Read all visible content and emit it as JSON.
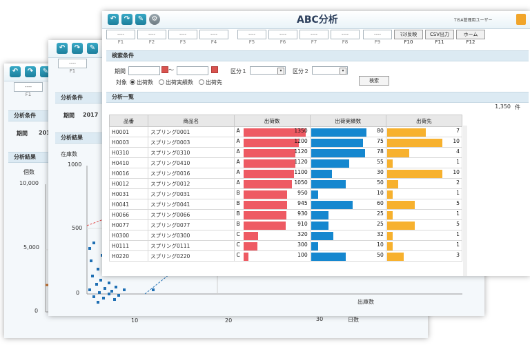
{
  "app": {
    "title": "ABC分析",
    "user": "TISA管理用ユーザー"
  },
  "fkeys_front": [
    {
      "key": "F1",
      "label": "----"
    },
    {
      "key": "F2",
      "label": "----"
    },
    {
      "key": "F3",
      "label": "----"
    },
    {
      "key": "F4",
      "label": "----"
    },
    {
      "key": "F5",
      "label": "----"
    },
    {
      "key": "F6",
      "label": "----"
    },
    {
      "key": "F7",
      "label": "----"
    },
    {
      "key": "F8",
      "label": "----"
    },
    {
      "key": "F9",
      "label": "----"
    },
    {
      "key": "F10",
      "label": "ﾏｽﾀ反映"
    },
    {
      "key": "F11",
      "label": "CSV出力"
    },
    {
      "key": "F12",
      "label": "ホーム"
    }
  ],
  "back_fkey": {
    "key": "F1",
    "label": "----"
  },
  "search": {
    "section": "検索条件",
    "period_label": "期間",
    "tilde": "～",
    "kubun1_label": "区分１",
    "kubun2_label": "区分２",
    "target_label": "対象",
    "radios": [
      "出荷数",
      "出荷実績数",
      "出荷先"
    ],
    "search_button": "検索"
  },
  "list": {
    "section": "分析一覧",
    "headers": [
      "品番",
      "商品名",
      "出荷数",
      "出荷実績数",
      "出荷先"
    ],
    "rows": [
      {
        "code": "H0001",
        "name": "スプリング0001",
        "rank": "A",
        "qty": "1350",
        "actual": "80",
        "dest": "7"
      },
      {
        "code": "H0003",
        "name": "スプリング0003",
        "rank": "A",
        "qty": "1200",
        "actual": "75",
        "dest": "10"
      },
      {
        "code": "H0310",
        "name": "スプリング0310",
        "rank": "A",
        "qty": "1120",
        "actual": "78",
        "dest": "4"
      },
      {
        "code": "H0410",
        "name": "スプリング0410",
        "rank": "A",
        "qty": "1120",
        "actual": "55",
        "dest": "1"
      },
      {
        "code": "H0016",
        "name": "スプリング0016",
        "rank": "A",
        "qty": "1100",
        "actual": "30",
        "dest": "10"
      },
      {
        "code": "H0012",
        "name": "スプリング0012",
        "rank": "A",
        "qty": "1050",
        "actual": "50",
        "dest": "2"
      },
      {
        "code": "H0031",
        "name": "スプリング0031",
        "rank": "B",
        "qty": "950",
        "actual": "10",
        "dest": "1"
      },
      {
        "code": "H0041",
        "name": "スプリング0041",
        "rank": "B",
        "qty": "945",
        "actual": "60",
        "dest": "5"
      },
      {
        "code": "H0066",
        "name": "スプリング0066",
        "rank": "B",
        "qty": "930",
        "actual": "25",
        "dest": "1"
      },
      {
        "code": "H0077",
        "name": "スプリング0077",
        "rank": "B",
        "qty": "910",
        "actual": "25",
        "dest": "5"
      },
      {
        "code": "H0300",
        "name": "スプリング0300",
        "rank": "C",
        "qty": "320",
        "actual": "32",
        "dest": "1"
      },
      {
        "code": "H0111",
        "name": "スプリング0111",
        "rank": "C",
        "qty": "300",
        "actual": "10",
        "dest": "1"
      },
      {
        "code": "H0220",
        "name": "スプリング0220",
        "rank": "C",
        "qty": "100",
        "actual": "50",
        "dest": "3"
      }
    ],
    "bar_max": {
      "qty": 1350,
      "actual": 80,
      "dest": 10
    }
  },
  "behind": {
    "total_value": "1,350",
    "total_unit": "件",
    "cond_section": "分析条件",
    "period_label": "期間",
    "period_value": "2017",
    "result_section": "分析結果",
    "chart_mid_ylabel": "在庫数",
    "chart_mid_xlabel": "出庫数",
    "chart_back_ylabel": "個数",
    "chart_back_xlabel": "日数",
    "mid_yticks": [
      "1000",
      "500",
      "0"
    ],
    "back_yticks": [
      "10,000",
      "5,000",
      "0"
    ],
    "back_xticks": [
      "10",
      "20",
      "30"
    ]
  },
  "colors": {
    "qty": "#ee5a63",
    "actual": "#1587cf",
    "dest": "#f7b12e",
    "header_bg": "#dceaf3"
  }
}
